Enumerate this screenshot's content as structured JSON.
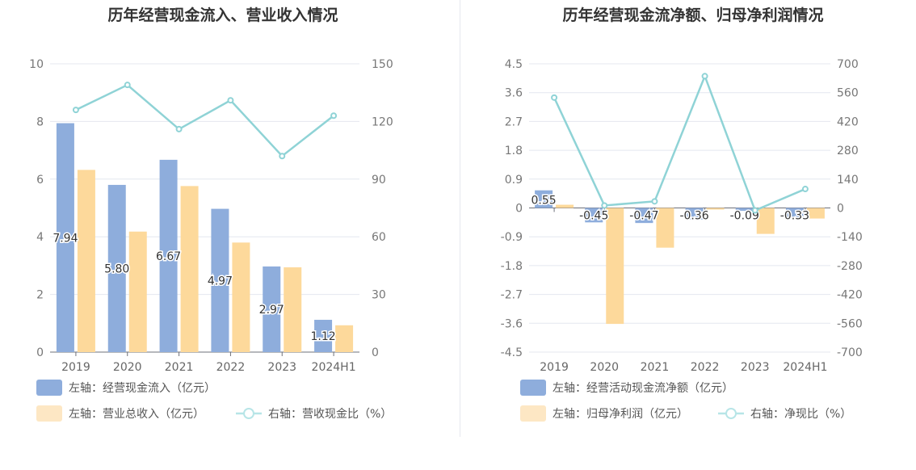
{
  "chart_data": [
    {
      "type": "bar",
      "title": "历年经营现金流入、营业收入情况",
      "categories": [
        "2019",
        "2020",
        "2021",
        "2022",
        "2023",
        "2024H1"
      ],
      "y_left": {
        "min": 0,
        "max": 10,
        "ticks": [
          0,
          2,
          4,
          6,
          8,
          10
        ]
      },
      "y_right": {
        "min": 0,
        "max": 150,
        "ticks": [
          0,
          30,
          60,
          90,
          120,
          150
        ]
      },
      "series": [
        {
          "name": "左轴：经营现金流入（亿元）",
          "axis": "left",
          "kind": "bar",
          "color": "#8eaddc",
          "values": [
            7.94,
            5.8,
            6.67,
            4.97,
            2.97,
            1.12
          ],
          "labels": [
            "7.94",
            "5.80",
            "6.67",
            "4.97",
            "2.97",
            "1.12"
          ]
        },
        {
          "name": "左轴：营业总收入（亿元）",
          "axis": "left",
          "kind": "bar",
          "color": "#fdd99b",
          "values": [
            6.32,
            4.18,
            5.76,
            3.8,
            2.94,
            0.93
          ]
        },
        {
          "name": "右轴：营收现金比（%）",
          "axis": "right",
          "kind": "line",
          "color": "#8fd3d6",
          "values": [
            126,
            139,
            116,
            131,
            102,
            123
          ]
        }
      ],
      "grid": true,
      "legend_position": "bottom-left"
    },
    {
      "type": "bar",
      "title": "历年经营现金流净额、归母净利润情况",
      "categories": [
        "2019",
        "2020",
        "2021",
        "2022",
        "2023",
        "2024H1"
      ],
      "y_left": {
        "min": -4.5,
        "max": 4.5,
        "ticks": [
          -4.5,
          -3.6,
          -2.7,
          -1.8,
          -0.9,
          0,
          0.9,
          1.8,
          2.7,
          3.6,
          4.5
        ]
      },
      "y_right": {
        "min": -700,
        "max": 700,
        "ticks": [
          -700,
          -560,
          -420,
          -280,
          -140,
          0,
          140,
          280,
          420,
          560,
          700
        ]
      },
      "series": [
        {
          "name": "左轴：经营活动现金流净额（亿元）",
          "axis": "left",
          "kind": "bar",
          "color": "#8eaddc",
          "values": [
            0.55,
            -0.45,
            -0.47,
            -0.36,
            -0.09,
            -0.33
          ],
          "labels": [
            "0.55",
            "-0.45",
            "-0.47",
            "-0.36",
            "-0.09",
            "-0.33"
          ]
        },
        {
          "name": "左轴：归母净利润（亿元）",
          "axis": "left",
          "kind": "bar",
          "color": "#fdd99b",
          "values": [
            0.1,
            -3.62,
            -1.24,
            -0.05,
            -0.81,
            -0.33
          ]
        },
        {
          "name": "右轴：净现比（%）",
          "axis": "right",
          "kind": "line",
          "color": "#8fd3d6",
          "values": [
            536,
            12,
            32,
            640,
            -12,
            92
          ]
        }
      ],
      "grid": true,
      "legend_position": "bottom-left"
    }
  ]
}
